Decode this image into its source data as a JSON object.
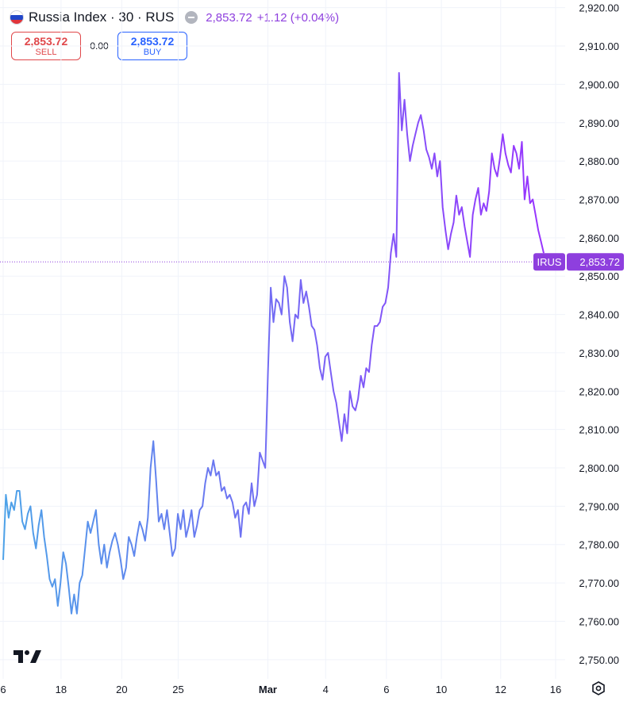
{
  "header": {
    "title": "Russia Index · 30 · RUS",
    "price": "2,853.72",
    "change": "+1.12 (+0.04%)"
  },
  "trade": {
    "sell_price": "2,853.72",
    "sell_label": "SELL",
    "spread": "0.00",
    "buy_price": "2,853.72",
    "buy_label": "BUY"
  },
  "colors": {
    "line_start": "#4da3e8",
    "line_end": "#9b30ff",
    "label_bg": "#8e3fde",
    "grid": "#f0f3fa",
    "sell": "#e0474a",
    "buy": "#2962ff"
  },
  "icons": [
    "russia-flag-icon",
    "minus-icon",
    "tradingview-logo-icon",
    "settings-icon"
  ],
  "chart_data": {
    "type": "line",
    "title": "Russia Index · 30 · RUS",
    "symbol": "IRUS",
    "last_value_label": "2,853.72",
    "last_value": 2853.72,
    "ylim": [
      2745,
      2922
    ],
    "yticks": [
      "2,750.00",
      "2,760.00",
      "2,770.00",
      "2,780.00",
      "2,790.00",
      "2,800.00",
      "2,810.00",
      "2,820.00",
      "2,830.00",
      "2,840.00",
      "2,850.00",
      "2,860.00",
      "2,870.00",
      "2,880.00",
      "2,890.00",
      "2,900.00",
      "2,910.00",
      "2,920.00"
    ],
    "xticks": [
      "6",
      "18",
      "20",
      "25",
      "Mar",
      "4",
      "6",
      "10",
      "12",
      "16"
    ],
    "grid": true,
    "x_index_range": [
      0,
      340
    ],
    "series": [
      {
        "values": [
          2776,
          2793,
          2787,
          2791,
          2789,
          2794,
          2794,
          2786,
          2784,
          2788,
          2790,
          2783,
          2779,
          2785,
          2789,
          2782,
          2777,
          2771,
          2769,
          2771,
          2764,
          2770,
          2778,
          2775,
          2769,
          2762,
          2767,
          2762,
          2770,
          2772,
          2779,
          2786,
          2783,
          2786,
          2789,
          2780,
          2775,
          2780,
          2774,
          2778,
          2781,
          2783,
          2780,
          2776,
          2771,
          2774,
          2782,
          2780,
          2777,
          2782,
          2786,
          2784,
          2781,
          2787,
          2800,
          2807,
          2797,
          2786,
          2788,
          2784,
          2789,
          2783,
          2777,
          2779,
          2788,
          2784,
          2789,
          2782,
          2785,
          2789,
          2782,
          2785,
          2789,
          2790,
          2796,
          2800,
          2798,
          2802,
          2798,
          2799,
          2794,
          2795,
          2792,
          2793,
          2791,
          2787,
          2789,
          2782,
          2790,
          2791,
          2788,
          2796,
          2790,
          2793,
          2804,
          2802,
          2800,
          2825,
          2847,
          2838,
          2844,
          2843,
          2840,
          2850,
          2847,
          2838,
          2833,
          2840,
          2839,
          2849,
          2843,
          2846,
          2842,
          2837,
          2836,
          2832,
          2826,
          2823,
          2829,
          2830,
          2825,
          2820,
          2817,
          2812,
          2807,
          2814,
          2809,
          2820,
          2816,
          2815,
          2818,
          2824,
          2821,
          2826,
          2825,
          2832,
          2837,
          2837,
          2838,
          2842,
          2843,
          2847,
          2856,
          2861,
          2855,
          2903,
          2888,
          2896,
          2887,
          2880,
          2884,
          2887,
          2890,
          2892,
          2888,
          2883,
          2881,
          2878,
          2882,
          2876,
          2880,
          2868,
          2862,
          2857,
          2861,
          2864,
          2871,
          2866,
          2868,
          2863,
          2859,
          2855,
          2866,
          2870,
          2873,
          2866,
          2869,
          2867,
          2872,
          2882,
          2878,
          2876,
          2881,
          2887,
          2882,
          2879,
          2877,
          2884,
          2882,
          2878,
          2885,
          2870,
          2876,
          2869,
          2870,
          2866,
          2862,
          2859,
          2856
        ]
      }
    ]
  }
}
